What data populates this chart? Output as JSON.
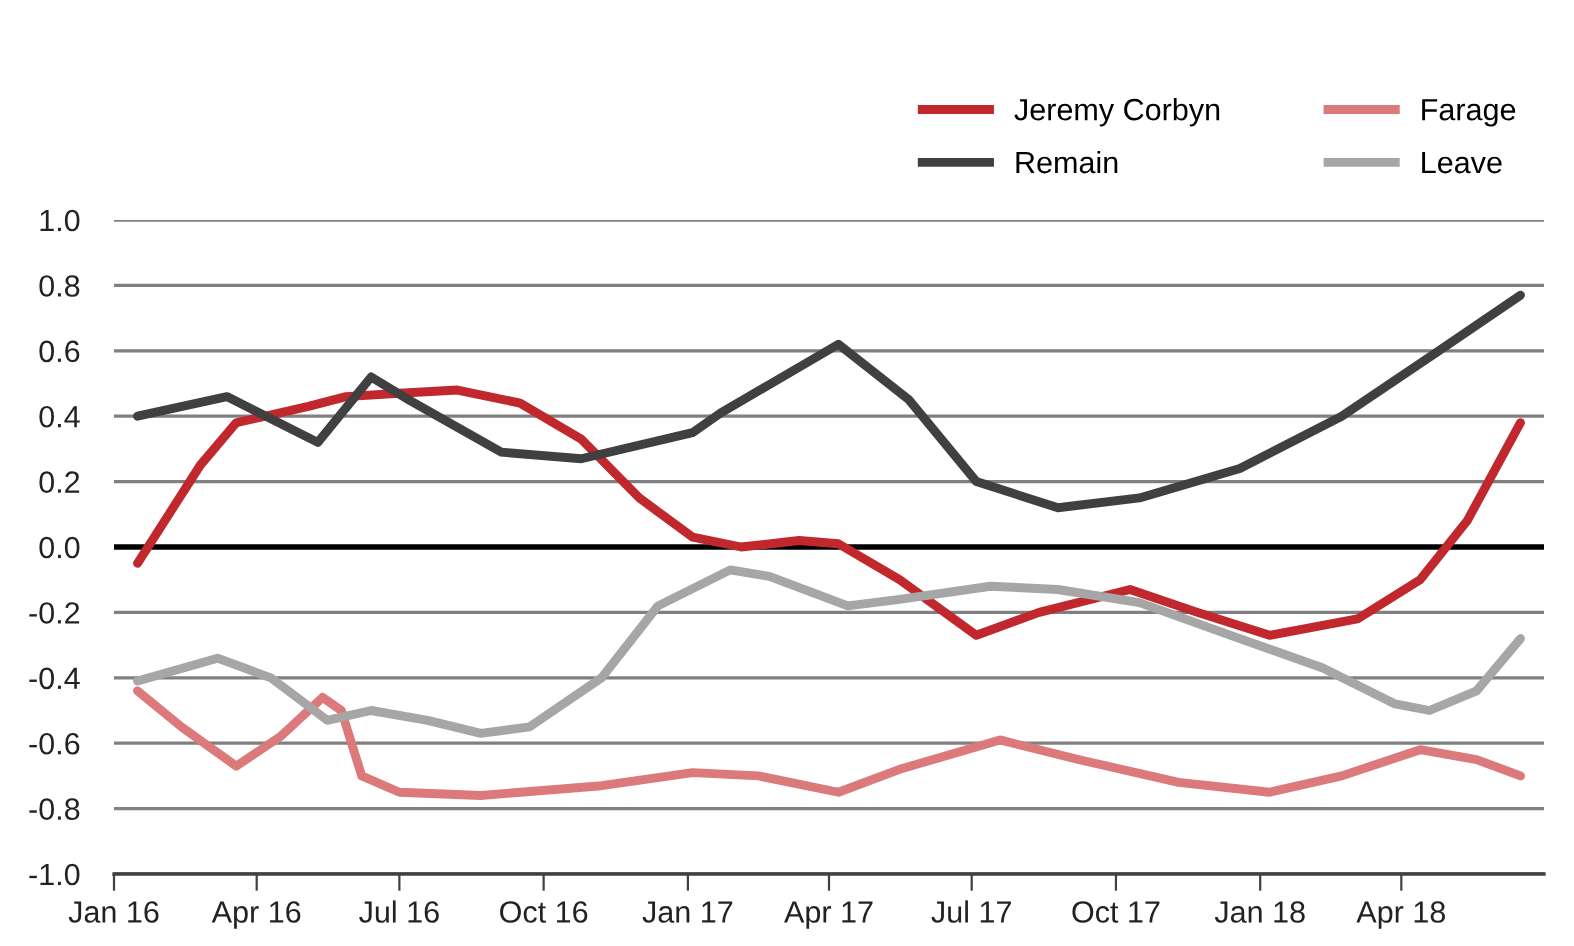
{
  "chart_data": {
    "type": "line",
    "xlim": [
      "2016-01-01",
      "2018-07-01"
    ],
    "xticks": [
      {
        "value": "2016-01-01",
        "label": "Jan 16"
      },
      {
        "value": "2016-04-01",
        "label": "Apr 16"
      },
      {
        "value": "2016-07-01",
        "label": "Jul 16"
      },
      {
        "value": "2016-10-01",
        "label": "Oct 16"
      },
      {
        "value": "2017-01-01",
        "label": "Jan 17"
      },
      {
        "value": "2017-04-01",
        "label": "Apr 17"
      },
      {
        "value": "2017-07-01",
        "label": "Jul 17"
      },
      {
        "value": "2017-10-01",
        "label": "Oct 17"
      },
      {
        "value": "2018-01-01",
        "label": "Jan 18"
      },
      {
        "value": "2018-04-01",
        "label": "Apr 18"
      }
    ],
    "ylim": [
      -1.0,
      1.0
    ],
    "yticks": [
      {
        "value": -1.0,
        "label": "-1.0"
      },
      {
        "value": -0.8,
        "label": "-0.8"
      },
      {
        "value": -0.6,
        "label": "-0.6"
      },
      {
        "value": -0.4,
        "label": "-0.4"
      },
      {
        "value": -0.2,
        "label": "-0.2"
      },
      {
        "value": 0.0,
        "label": "0.0"
      },
      {
        "value": 0.2,
        "label": "0.2"
      },
      {
        "value": 0.4,
        "label": "0.4"
      },
      {
        "value": 0.6,
        "label": "0.6"
      },
      {
        "value": 0.8,
        "label": "0.8"
      },
      {
        "value": 1.0,
        "label": "1.0"
      }
    ],
    "grid": "y",
    "legend": "top right",
    "line_style": "solid",
    "marker": "none",
    "ref_lines": [
      {
        "axis": "y",
        "value": 0,
        "label": null,
        "color": "#000000"
      }
    ],
    "series": [
      {
        "name": "Jeremy Corbyn",
        "color": "#c0282d",
        "x": [
          "2016-01-16",
          "2016-02-25",
          "2016-03-19",
          "2016-05-04",
          "2016-05-28",
          "2016-07-01",
          "2016-08-07",
          "2016-09-16",
          "2016-10-25",
          "2016-12-01",
          "2017-01-04",
          "2017-02-04",
          "2017-03-13",
          "2017-04-07",
          "2017-05-16",
          "2017-07-04",
          "2017-08-13",
          "2017-10-10",
          "2017-11-22",
          "2018-01-07",
          "2018-03-04",
          "2018-04-13",
          "2018-05-13",
          "2018-06-16"
        ],
        "values": [
          -0.05,
          0.25,
          0.38,
          0.43,
          0.46,
          0.47,
          0.48,
          0.44,
          0.33,
          0.15,
          0.03,
          0.0,
          0.02,
          0.01,
          -0.1,
          -0.27,
          -0.2,
          -0.13,
          -0.2,
          -0.27,
          -0.22,
          -0.1,
          0.08,
          0.38
        ]
      },
      {
        "name": "Farage",
        "color": "#dc7a7b",
        "x": [
          "2016-01-16",
          "2016-02-13",
          "2016-03-19",
          "2016-04-16",
          "2016-05-13",
          "2016-05-25",
          "2016-06-07",
          "2016-07-01",
          "2016-08-22",
          "2016-11-07",
          "2017-01-04",
          "2017-02-15",
          "2017-04-07",
          "2017-05-16",
          "2017-07-19",
          "2017-09-07",
          "2017-11-10",
          "2018-01-07",
          "2018-02-22",
          "2018-04-13",
          "2018-05-19",
          "2018-06-16"
        ],
        "values": [
          -0.44,
          -0.55,
          -0.67,
          -0.58,
          -0.46,
          -0.5,
          -0.7,
          -0.75,
          -0.76,
          -0.73,
          -0.69,
          -0.7,
          -0.75,
          -0.68,
          -0.59,
          -0.65,
          -0.72,
          -0.75,
          -0.7,
          -0.62,
          -0.65,
          -0.7
        ]
      },
      {
        "name": "Remain",
        "color": "#404040",
        "x": [
          "2016-01-16",
          "2016-03-13",
          "2016-05-10",
          "2016-06-13",
          "2016-07-07",
          "2016-09-04",
          "2016-10-25",
          "2017-01-04",
          "2017-01-22",
          "2017-04-07",
          "2017-05-22",
          "2017-07-04",
          "2017-08-25",
          "2017-10-16",
          "2017-12-19",
          "2018-02-22",
          "2018-04-25",
          "2018-06-16"
        ],
        "values": [
          0.4,
          0.46,
          0.32,
          0.52,
          0.45,
          0.29,
          0.27,
          0.35,
          0.41,
          0.62,
          0.45,
          0.2,
          0.12,
          0.15,
          0.24,
          0.4,
          0.6,
          0.77
        ]
      },
      {
        "name": "Leave",
        "color": "#a6a6a6",
        "x": [
          "2016-01-16",
          "2016-03-07",
          "2016-04-10",
          "2016-05-16",
          "2016-06-13",
          "2016-07-19",
          "2016-08-22",
          "2016-09-22",
          "2016-11-07",
          "2016-12-13",
          "2017-01-28",
          "2017-02-22",
          "2017-04-13",
          "2017-05-16",
          "2017-07-13",
          "2017-08-25",
          "2017-10-16",
          "2017-12-19",
          "2018-02-10",
          "2018-03-28",
          "2018-04-19",
          "2018-05-19",
          "2018-06-16"
        ],
        "values": [
          -0.41,
          -0.34,
          -0.4,
          -0.53,
          -0.5,
          -0.53,
          -0.57,
          -0.55,
          -0.4,
          -0.18,
          -0.07,
          -0.09,
          -0.18,
          -0.16,
          -0.12,
          -0.13,
          -0.17,
          -0.28,
          -0.37,
          -0.48,
          -0.5,
          -0.44,
          -0.28
        ]
      }
    ]
  }
}
